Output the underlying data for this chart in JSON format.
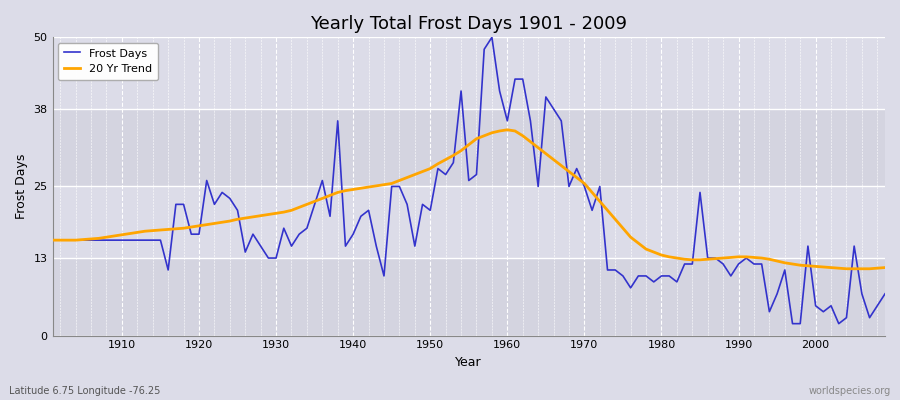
{
  "title": "Yearly Total Frost Days 1901 - 2009",
  "xlabel": "Year",
  "ylabel": "Frost Days",
  "subtitle_left": "Latitude 6.75 Longitude -76.25",
  "subtitle_right": "worldspecies.org",
  "ylim": [
    0,
    50
  ],
  "xlim": [
    1901,
    2009
  ],
  "yticks": [
    0,
    13,
    25,
    38,
    50
  ],
  "xticks": [
    1910,
    1920,
    1930,
    1940,
    1950,
    1960,
    1970,
    1980,
    1990,
    2000
  ],
  "bg_color": "#dcdce8",
  "bg_band_light": "#e8e8f0",
  "bg_band_dark": "#d0d0dc",
  "line_color_frost": "#3333cc",
  "line_color_trend": "#ffa500",
  "legend_labels": [
    "Frost Days",
    "20 Yr Trend"
  ],
  "frost_days": [
    16,
    16,
    16,
    16,
    16,
    16,
    16,
    16,
    16,
    16,
    16,
    16,
    16,
    16,
    16,
    11,
    22,
    22,
    17,
    17,
    26,
    22,
    24,
    23,
    21,
    14,
    17,
    15,
    13,
    13,
    18,
    15,
    17,
    18,
    22,
    26,
    20,
    36,
    15,
    17,
    20,
    21,
    15,
    10,
    25,
    25,
    22,
    15,
    22,
    21,
    28,
    27,
    29,
    41,
    26,
    27,
    48,
    50,
    41,
    36,
    43,
    43,
    36,
    25,
    40,
    38,
    36,
    25,
    28,
    25,
    21,
    25,
    11,
    11,
    10,
    8,
    10,
    10,
    9,
    10,
    10,
    9,
    12,
    12,
    24,
    13,
    13,
    12,
    10,
    12,
    13,
    12,
    12,
    4,
    7,
    11,
    2,
    2,
    15,
    5,
    4,
    5,
    2,
    3,
    15,
    7,
    3,
    5,
    7
  ],
  "years": [
    1901,
    1902,
    1903,
    1904,
    1905,
    1906,
    1907,
    1908,
    1909,
    1910,
    1911,
    1912,
    1913,
    1914,
    1915,
    1916,
    1917,
    1918,
    1919,
    1920,
    1921,
    1922,
    1923,
    1924,
    1925,
    1926,
    1927,
    1928,
    1929,
    1930,
    1931,
    1932,
    1933,
    1934,
    1935,
    1936,
    1937,
    1938,
    1939,
    1940,
    1941,
    1942,
    1943,
    1944,
    1945,
    1946,
    1947,
    1948,
    1949,
    1950,
    1951,
    1952,
    1953,
    1954,
    1955,
    1956,
    1957,
    1958,
    1959,
    1960,
    1961,
    1962,
    1963,
    1964,
    1965,
    1966,
    1967,
    1968,
    1969,
    1970,
    1971,
    1972,
    1973,
    1974,
    1975,
    1976,
    1977,
    1978,
    1979,
    1980,
    1981,
    1982,
    1983,
    1984,
    1985,
    1986,
    1987,
    1988,
    1989,
    1990,
    1991,
    1992,
    1993,
    1994,
    1995,
    1996,
    1997,
    1998,
    1999,
    2000,
    2001,
    2002,
    2003,
    2004,
    2005,
    2006,
    2007,
    2008,
    2009
  ],
  "trend_days": [
    16.0,
    16.0,
    16.0,
    16.0,
    16.1,
    16.2,
    16.3,
    16.5,
    16.7,
    16.9,
    17.1,
    17.3,
    17.5,
    17.6,
    17.7,
    17.8,
    17.9,
    18.0,
    18.2,
    18.4,
    18.6,
    18.8,
    19.0,
    19.2,
    19.5,
    19.7,
    19.9,
    20.1,
    20.3,
    20.5,
    20.7,
    21.0,
    21.5,
    22.0,
    22.5,
    23.0,
    23.5,
    24.0,
    24.3,
    24.5,
    24.7,
    24.9,
    25.1,
    25.3,
    25.5,
    26.0,
    26.5,
    27.0,
    27.5,
    28.0,
    28.8,
    29.5,
    30.2,
    31.0,
    32.0,
    33.0,
    33.5,
    34.0,
    34.3,
    34.5,
    34.3,
    33.5,
    32.5,
    31.5,
    30.5,
    29.5,
    28.5,
    27.5,
    26.5,
    25.5,
    24.0,
    22.5,
    21.0,
    19.5,
    18.0,
    16.5,
    15.5,
    14.5,
    14.0,
    13.5,
    13.2,
    13.0,
    12.8,
    12.7,
    12.7,
    12.8,
    12.9,
    13.0,
    13.1,
    13.2,
    13.2,
    13.1,
    13.0,
    12.8,
    12.5,
    12.2,
    12.0,
    11.8,
    11.7,
    11.6,
    11.5,
    11.4,
    11.3,
    11.2,
    11.2,
    11.2,
    11.2,
    11.3,
    11.4
  ]
}
